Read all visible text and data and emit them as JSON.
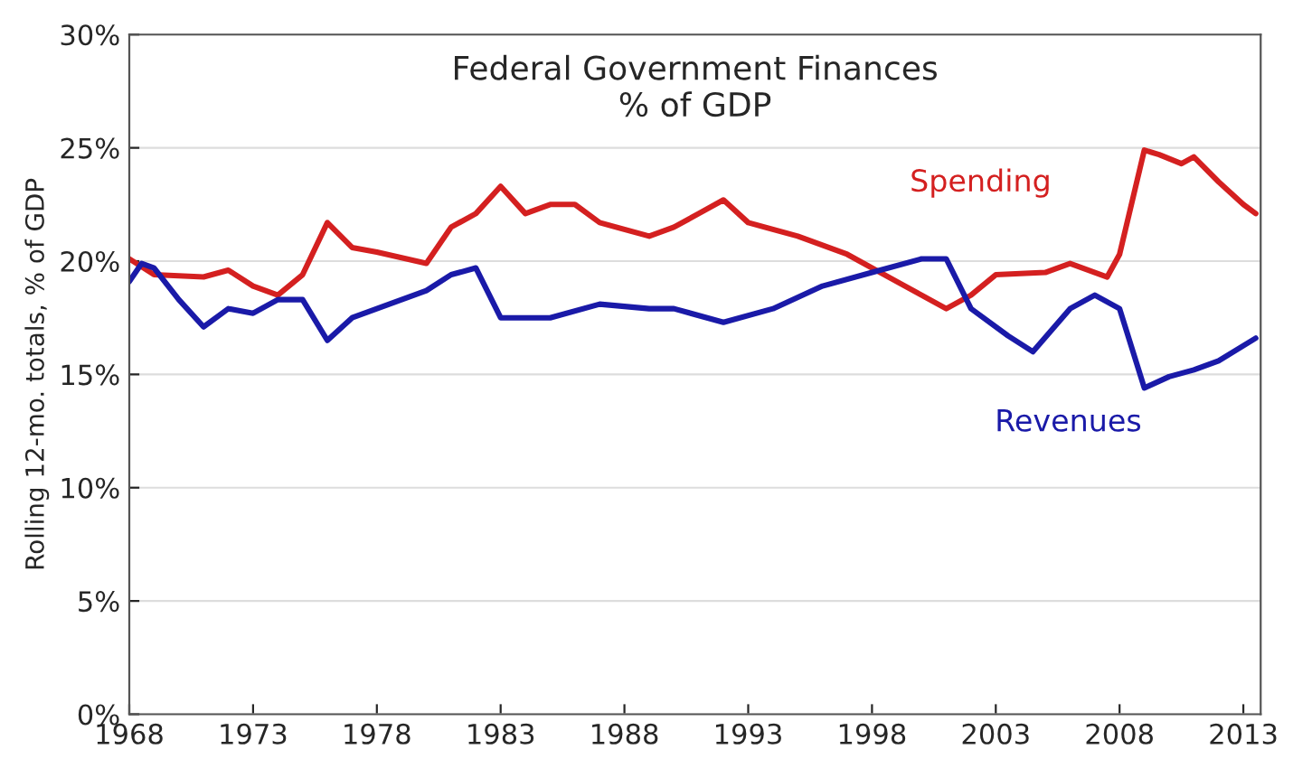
{
  "chart_data": {
    "type": "line",
    "title": "Federal Government Finances\n% of GDP",
    "ylabel": "Rolling 12-mo. totals, % of GDP",
    "xlim": [
      1968,
      2013.7
    ],
    "xticks": [
      1968,
      1973,
      1978,
      1983,
      1988,
      1993,
      1998,
      2003,
      2008,
      2013
    ],
    "ylim": [
      0,
      30
    ],
    "yticks": [
      {
        "value": 0,
        "label": "0%"
      },
      {
        "value": 5,
        "label": "5%"
      },
      {
        "value": 10,
        "label": "10%"
      },
      {
        "value": 15,
        "label": "15%"
      },
      {
        "value": 20,
        "label": "20%"
      },
      {
        "value": 25,
        "label": "25%"
      },
      {
        "value": 30,
        "label": "30%"
      }
    ],
    "grid": "y",
    "legend": false,
    "series": [
      {
        "name": "Spending",
        "color": "#d42020",
        "x": [
          1968,
          1969,
          1971,
          1972,
          1973,
          1974,
          1975,
          1976,
          1977,
          1978,
          1980,
          1981,
          1982,
          1983,
          1984,
          1985,
          1986,
          1987,
          1989,
          1990,
          1991,
          1992,
          1993,
          1995,
          1997,
          1999,
          2000,
          2001,
          2002,
          2003,
          2005,
          2006,
          2007.5,
          2008,
          2009,
          2009.6,
          2010.5,
          2011,
          2012,
          2013,
          2013.5
        ],
        "values": [
          20.1,
          19.4,
          19.3,
          19.6,
          18.9,
          18.5,
          19.4,
          21.7,
          20.6,
          20.4,
          19.9,
          21.5,
          22.1,
          23.3,
          22.1,
          22.5,
          22.5,
          21.7,
          21.1,
          21.5,
          22.1,
          22.7,
          21.7,
          21.1,
          20.3,
          19.1,
          18.5,
          17.9,
          18.5,
          19.4,
          19.5,
          19.9,
          19.3,
          20.3,
          24.9,
          24.7,
          24.3,
          24.6,
          23.5,
          22.5,
          22.1
        ]
      },
      {
        "name": "Revenues",
        "color": "#1a1aa8",
        "x": [
          1968,
          1968.5,
          1969,
          1970,
          1971,
          1972,
          1973,
          1974,
          1975,
          1976,
          1977,
          1978,
          1980,
          1981,
          1982,
          1983,
          1985,
          1987,
          1989,
          1990,
          1992,
          1994,
          1996,
          1998,
          2000,
          2001,
          2002,
          2003.5,
          2004.5,
          2006,
          2007,
          2008,
          2009,
          2010,
          2011,
          2012,
          2013.5
        ],
        "values": [
          19.1,
          19.9,
          19.7,
          18.3,
          17.1,
          17.9,
          17.7,
          18.3,
          18.3,
          16.5,
          17.5,
          17.9,
          18.7,
          19.4,
          19.7,
          17.5,
          17.5,
          18.1,
          17.9,
          17.9,
          17.3,
          17.9,
          18.9,
          19.5,
          20.1,
          20.1,
          17.9,
          16.7,
          16.0,
          17.9,
          18.5,
          17.9,
          14.4,
          14.9,
          15.2,
          15.6,
          16.6
        ]
      }
    ]
  }
}
